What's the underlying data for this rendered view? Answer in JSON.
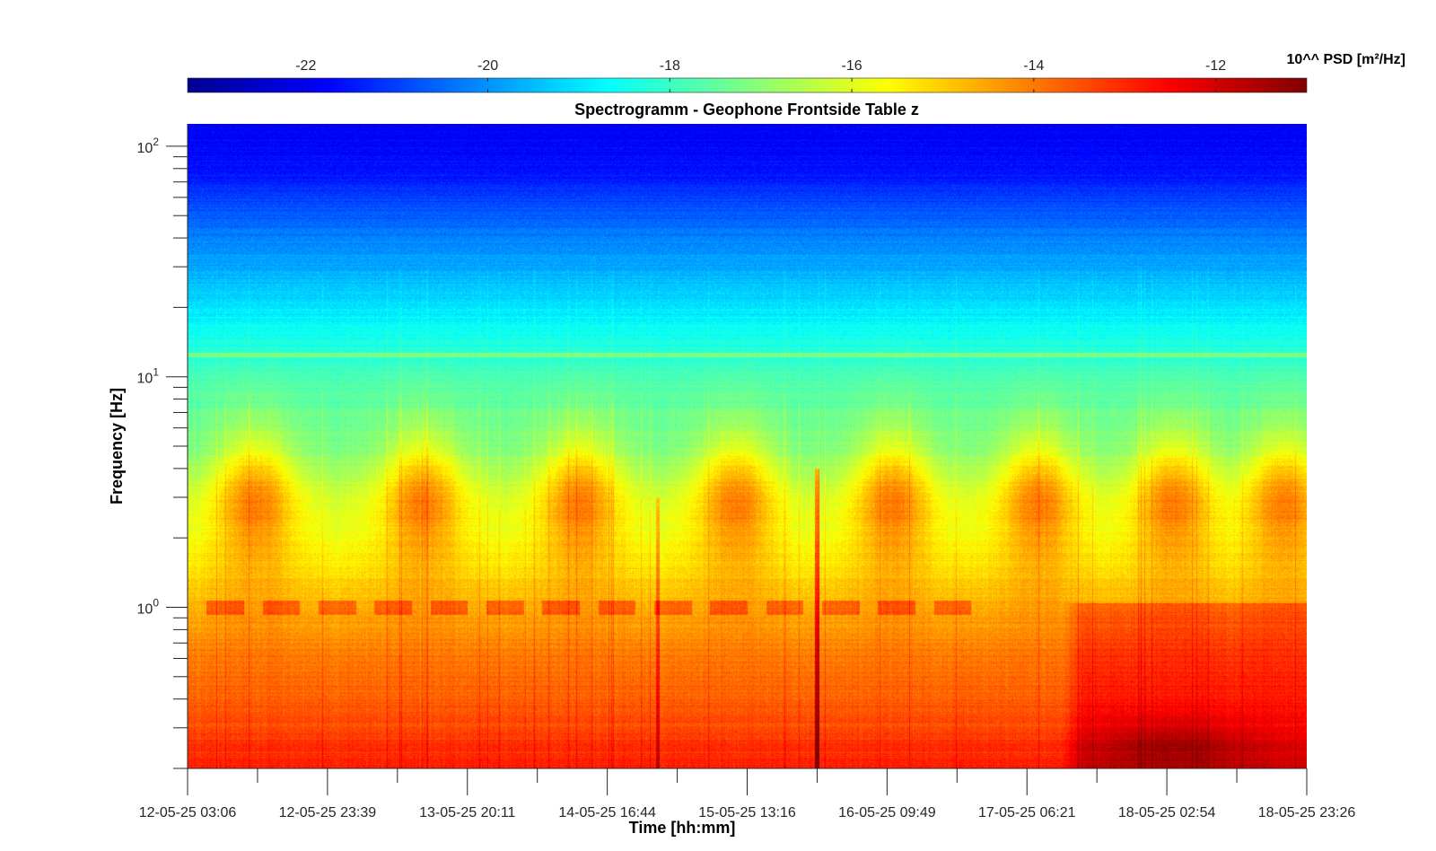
{
  "chart_data": {
    "type": "heatmap",
    "title": "Spectrogramm - Geophone Frontside Table z",
    "xlabel": "Time [hh:mm]",
    "ylabel": "Frequency [Hz]",
    "colorbar": {
      "label": "10^^ PSD [m²/Hz]",
      "colormap": "jet",
      "range": [
        -23.3,
        -11.0
      ],
      "ticks": [
        -22,
        -20,
        -18,
        -16,
        -14,
        -12
      ],
      "tick_labels": [
        "-22",
        "-20",
        "-18",
        "-16",
        "-14",
        "-12"
      ],
      "placement": "top"
    },
    "y_axis": {
      "scale": "log",
      "range": [
        0.2,
        125
      ],
      "major_ticks": [
        1,
        10,
        100
      ],
      "major_tick_labels": [
        {
          "base": "10",
          "exp": "0"
        },
        {
          "base": "10",
          "exp": "1"
        },
        {
          "base": "10",
          "exp": "2"
        }
      ],
      "minor_ticks": [
        0.2,
        0.3,
        0.4,
        0.5,
        0.6,
        0.7,
        0.8,
        0.9,
        2,
        3,
        4,
        5,
        6,
        7,
        8,
        9,
        20,
        30,
        40,
        50,
        60,
        70,
        80,
        90
      ]
    },
    "x_axis": {
      "tick_labels": [
        "12-05-25 03:06",
        "12-05-25 23:39",
        "13-05-25 20:11",
        "14-05-25 16:44",
        "15-05-25 13:16",
        "16-05-25 09:49",
        "17-05-25 06:21",
        "18-05-25 02:54",
        "18-05-25 23:26"
      ],
      "minor_ticks_between_labels": 1
    },
    "day_activity_centers_fraction": [
      0.06,
      0.21,
      0.35,
      0.49,
      0.63,
      0.76,
      0.88,
      0.98
    ],
    "approx_psd_profile": [
      {
        "freq": 0.2,
        "log10_psd": -12.8
      },
      {
        "freq": 0.3,
        "log10_psd": -13.4
      },
      {
        "freq": 0.5,
        "log10_psd": -13.9
      },
      {
        "freq": 0.7,
        "log10_psd": -14.2
      },
      {
        "freq": 1.0,
        "log10_psd": -14.7
      },
      {
        "freq": 2.0,
        "log10_psd": -15.8
      },
      {
        "freq": 3.0,
        "log10_psd": -16.2
      },
      {
        "freq": 5.0,
        "log10_psd": -17.2
      },
      {
        "freq": 10.0,
        "log10_psd": -17.8
      },
      {
        "freq": 20.0,
        "log10_psd": -19.0
      },
      {
        "freq": 40.0,
        "log10_psd": -20.2
      },
      {
        "freq": 80.0,
        "log10_psd": -21.6
      },
      {
        "freq": 125.0,
        "log10_psd": -21.9
      }
    ]
  }
}
